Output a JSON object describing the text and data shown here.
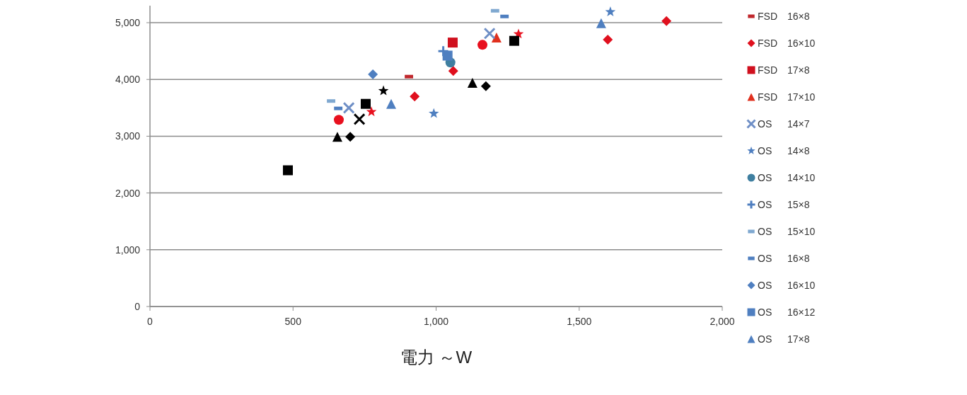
{
  "chart_data": {
    "type": "scatter",
    "xlabel": "電力 ～W",
    "xlim": [
      0,
      2000
    ],
    "xticks": [
      {
        "value": 0,
        "label": "0"
      },
      {
        "value": 500,
        "label": "500"
      },
      {
        "value": 1000,
        "label": "1,000"
      },
      {
        "value": 1500,
        "label": "1,500"
      },
      {
        "value": 2000,
        "label": "2,000"
      }
    ],
    "ylim": [
      0,
      5300
    ],
    "yticks": [
      {
        "value": 0,
        "label": "0"
      },
      {
        "value": 1000,
        "label": "1,000"
      },
      {
        "value": 2000,
        "label": "2,000"
      },
      {
        "value": 3000,
        "label": "3,000"
      },
      {
        "value": 4000,
        "label": "4,000"
      },
      {
        "value": 5000,
        "label": "5,000"
      }
    ],
    "grid": "y",
    "legend": "right",
    "series": [
      {
        "name": "FSD 16×8",
        "color": "#c0282d",
        "x": [
          905
        ],
        "values": [
          4050
        ]
      },
      {
        "name": "FSD 16×10",
        "color": "#e0101e",
        "marker": "diamond",
        "x": [
          925,
          1060,
          1600,
          1805
        ],
        "values": [
          3700,
          4150,
          4700,
          5030
        ]
      },
      {
        "name": "FSD 17×8",
        "color": "#d0101e",
        "marker": "square",
        "x": [
          1058
        ],
        "values": [
          4650
        ]
      },
      {
        "name": "FSD 17×10",
        "color": "#e0301e",
        "marker": "triangle",
        "x": [
          1211
        ],
        "values": [
          4740
        ]
      },
      {
        "name": "OS 14×7",
        "color": "#6f8fc6",
        "marker": "cross",
        "x": [
          695,
          1187
        ],
        "values": [
          3500,
          4810
        ]
      },
      {
        "name": "OS 14×8",
        "color": "#4f7fc0",
        "marker": "star",
        "x": [
          992,
          1609
        ],
        "values": [
          3400,
          5190
        ]
      },
      {
        "name": "OS 14×10",
        "color": "#3f7fa0",
        "marker": "circle",
        "x": [
          1050
        ],
        "values": [
          4300
        ]
      },
      {
        "name": "OS 15×8",
        "color": "#4f7fc0",
        "marker": "plus",
        "x": [
          1025
        ],
        "values": [
          4500
        ]
      },
      {
        "name": "OS 15×10",
        "color": "#7fa8d0",
        "x": [
          633,
          1206
        ],
        "values": [
          3620,
          5210
        ]
      },
      {
        "name": "OS 16×8",
        "color": "#4f7fc0",
        "x": [
          658,
          1239
        ],
        "values": [
          3490,
          5110
        ]
      },
      {
        "name": "OS 16×10",
        "color": "#4f7fc0",
        "marker": "diamond",
        "x": [
          779
        ],
        "values": [
          4090
        ]
      },
      {
        "name": "OS 16×12",
        "color": "#4f7fc0",
        "marker": "square",
        "x": [
          1040
        ],
        "values": [
          4420
        ]
      },
      {
        "name": "OS 17×8",
        "color": "#4f7fc0",
        "marker": "triangle",
        "x": [
          843,
          1577
        ],
        "values": [
          3570,
          4990
        ]
      },
      {
        "color": "#e8101e",
        "marker": "circle",
        "x": [
          660,
          1162
        ],
        "values": [
          3290,
          4610
        ]
      },
      {
        "color": "#e8101e",
        "marker": "star",
        "x": [
          774,
          1288
        ],
        "values": [
          3430,
          4800
        ]
      },
      {
        "color": "#000000",
        "marker": "square",
        "x": [
          482,
          754,
          1273
        ],
        "values": [
          2400,
          3570,
          4680
        ]
      },
      {
        "color": "#000000",
        "marker": "triangle",
        "x": [
          655,
          1127
        ],
        "values": [
          2990,
          3940
        ]
      },
      {
        "color": "#000000",
        "marker": "diamond",
        "x": [
          700,
          1174
        ],
        "values": [
          2990,
          3880
        ]
      },
      {
        "color": "#000000",
        "marker": "cross",
        "x": [
          732
        ],
        "values": [
          3300
        ]
      },
      {
        "color": "#000000",
        "marker": "star",
        "x": [
          816
        ],
        "values": [
          3800
        ]
      }
    ]
  }
}
